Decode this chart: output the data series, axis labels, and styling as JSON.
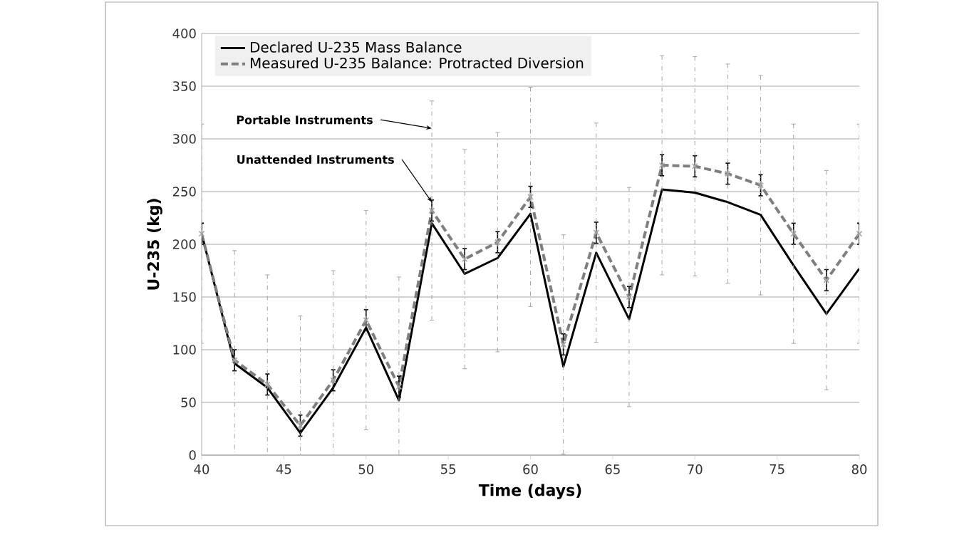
{
  "chart_data": {
    "type": "line",
    "xlabel": "Time (days)",
    "ylabel": "U-235 (kg)",
    "xlim": [
      40,
      80
    ],
    "ylim": [
      0,
      400
    ],
    "xticks": [
      40,
      45,
      50,
      55,
      60,
      65,
      70,
      75,
      80
    ],
    "yticks": [
      0,
      50,
      100,
      150,
      200,
      250,
      300,
      350,
      400
    ],
    "grid": "y",
    "legend": "top left",
    "x": [
      40,
      42,
      44,
      46,
      48,
      50,
      52,
      54,
      56,
      58,
      60,
      62,
      64,
      66,
      68,
      70,
      72,
      74,
      76,
      78,
      80
    ],
    "annotations": [
      {
        "text": "Portable  Instruments",
        "x": 54,
        "y": 310
      },
      {
        "text": "Unattended  Instruments",
        "x": 54,
        "y": 240
      }
    ],
    "series": [
      {
        "name": "Declared U-235 Mass Balance",
        "color": "#000000",
        "line_style": "solid",
        "values": [
          210,
          87,
          64,
          21,
          64,
          121,
          52,
          220,
          172,
          187,
          229,
          84,
          192,
          129,
          252,
          249,
          240,
          228,
          180,
          134,
          177
        ]
      },
      {
        "name": "Measured U-235 Balance: Protracted Diversion",
        "color": "#7f7f7f",
        "line_style": "dashed",
        "values": [
          210,
          90,
          67,
          28,
          71,
          128,
          65,
          232,
          186,
          202,
          245,
          105,
          211,
          150,
          275,
          274,
          267,
          256,
          210,
          166,
          210
        ],
        "errors": [
          10,
          10,
          10,
          10,
          10,
          10,
          10,
          10,
          10,
          10,
          10,
          10,
          10,
          10,
          10,
          10,
          10,
          10,
          10,
          10,
          10
        ]
      },
      {
        "type": "scatter",
        "marker": "cross",
        "color": "#a6a6a6",
        "values": [
          210,
          90,
          67,
          28,
          71,
          128,
          65,
          232,
          186,
          202,
          245,
          105,
          211,
          150,
          275,
          274,
          267,
          256,
          210,
          166,
          210
        ],
        "errors": [
          104,
          [
            0,
            194
          ],
          [
            0,
            171
          ],
          [
            0,
            132
          ],
          [
            0,
            175
          ],
          104,
          [
            0,
            169
          ],
          104,
          104,
          104,
          104,
          104,
          104,
          104,
          104,
          104,
          104,
          104,
          104,
          104,
          104
        ]
      }
    ]
  }
}
